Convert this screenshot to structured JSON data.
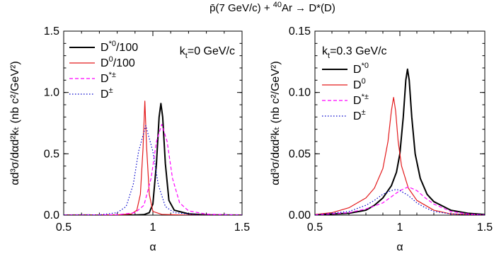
{
  "title": {
    "pre": "p̄(7 GeV/c) + ",
    "sup": "40",
    "post": "Ar → D*(D)"
  },
  "chart_data": [
    {
      "type": "line",
      "panel": "left",
      "annotation": {
        "base": "k",
        "sub": "t",
        "rest": "=0 GeV/c"
      },
      "xlabel": "α",
      "ylabel": "αd³σ/dαd²kₜ (nb c²/GeV²)",
      "xlim": [
        0.5,
        1.5
      ],
      "ylim": [
        0.0,
        1.5
      ],
      "xticks": [
        "0.5",
        "1",
        "1.5"
      ],
      "yticks": [
        "0.0",
        "0.5",
        "1.0",
        "1.5"
      ],
      "legend_position": "top-left",
      "series": [
        {
          "name": {
            "base": "D",
            "sup": "*0",
            "rest": "/100"
          },
          "color": "#000000",
          "dash": "solid",
          "width": 2.0,
          "points": [
            [
              0.5,
              0.0
            ],
            [
              0.9,
              0.001
            ],
            [
              0.95,
              0.004
            ],
            [
              0.98,
              0.02
            ],
            [
              1.0,
              0.09
            ],
            [
              1.02,
              0.42
            ],
            [
              1.035,
              0.8
            ],
            [
              1.045,
              0.91
            ],
            [
              1.055,
              0.8
            ],
            [
              1.07,
              0.42
            ],
            [
              1.09,
              0.12
            ],
            [
              1.12,
              0.04
            ],
            [
              1.2,
              0.01
            ],
            [
              1.3,
              0.002
            ],
            [
              1.5,
              0.0
            ]
          ]
        },
        {
          "name": {
            "base": "D",
            "sup": "0",
            "rest": "/100"
          },
          "color": "#e31a1c",
          "dash": "solid",
          "width": 1.2,
          "points": [
            [
              0.5,
              0.0
            ],
            [
              0.8,
              0.002
            ],
            [
              0.88,
              0.01
            ],
            [
              0.91,
              0.04
            ],
            [
              0.93,
              0.17
            ],
            [
              0.945,
              0.55
            ],
            [
              0.955,
              0.93
            ],
            [
              0.965,
              0.55
            ],
            [
              0.98,
              0.17
            ],
            [
              1.0,
              0.03
            ],
            [
              1.05,
              0.006
            ],
            [
              1.2,
              0.0
            ],
            [
              1.5,
              0.0
            ]
          ]
        },
        {
          "name": {
            "base": "D",
            "sup": "*±",
            "rest": ""
          },
          "color": "#ff00ff",
          "dash": "dash",
          "width": 1.2,
          "points": [
            [
              0.5,
              0.0
            ],
            [
              0.8,
              0.003
            ],
            [
              0.9,
              0.02
            ],
            [
              0.95,
              0.08
            ],
            [
              0.99,
              0.3
            ],
            [
              1.02,
              0.6
            ],
            [
              1.05,
              0.74
            ],
            [
              1.08,
              0.6
            ],
            [
              1.11,
              0.3
            ],
            [
              1.15,
              0.1
            ],
            [
              1.2,
              0.035
            ],
            [
              1.3,
              0.008
            ],
            [
              1.5,
              0.0
            ]
          ]
        },
        {
          "name": {
            "base": "D",
            "sup": "±",
            "rest": ""
          },
          "color": "#0000cc",
          "dash": "dot",
          "width": 1.2,
          "points": [
            [
              0.5,
              0.0
            ],
            [
              0.7,
              0.002
            ],
            [
              0.8,
              0.02
            ],
            [
              0.85,
              0.07
            ],
            [
              0.89,
              0.25
            ],
            [
              0.92,
              0.52
            ],
            [
              0.96,
              0.73
            ],
            [
              1.0,
              0.52
            ],
            [
              1.03,
              0.25
            ],
            [
              1.07,
              0.07
            ],
            [
              1.12,
              0.02
            ],
            [
              1.25,
              0.002
            ],
            [
              1.5,
              0.0
            ]
          ]
        }
      ]
    },
    {
      "type": "line",
      "panel": "right",
      "annotation": {
        "base": "k",
        "sub": "t",
        "rest": "=0.3 GeV/c"
      },
      "xlabel": "α",
      "ylabel": "αd³σ/dαd²kₜ (nb c²/GeV²)",
      "xlim": [
        0.5,
        1.5
      ],
      "ylim": [
        0.0,
        0.15
      ],
      "xticks": [
        "0.5",
        "1",
        "1.5"
      ],
      "yticks": [
        "0.00",
        "0.05",
        "0.10",
        "0.15"
      ],
      "legend_position": "top-left",
      "series": [
        {
          "name": {
            "base": "D",
            "sup": "*0",
            "rest": ""
          },
          "color": "#000000",
          "dash": "solid",
          "width": 2.0,
          "points": [
            [
              0.5,
              0.0002
            ],
            [
              0.7,
              0.0015
            ],
            [
              0.8,
              0.004
            ],
            [
              0.85,
              0.008
            ],
            [
              0.9,
              0.014
            ],
            [
              0.95,
              0.024
            ],
            [
              0.98,
              0.035
            ],
            [
              1.0,
              0.05
            ],
            [
              1.02,
              0.08
            ],
            [
              1.035,
              0.11
            ],
            [
              1.045,
              0.119
            ],
            [
              1.055,
              0.11
            ],
            [
              1.07,
              0.08
            ],
            [
              1.09,
              0.05
            ],
            [
              1.12,
              0.03
            ],
            [
              1.16,
              0.017
            ],
            [
              1.2,
              0.011
            ],
            [
              1.3,
              0.004
            ],
            [
              1.4,
              0.0015
            ],
            [
              1.5,
              0.0005
            ]
          ]
        },
        {
          "name": {
            "base": "D",
            "sup": "0",
            "rest": ""
          },
          "color": "#e31a1c",
          "dash": "solid",
          "width": 1.2,
          "points": [
            [
              0.5,
              0.0005
            ],
            [
              0.6,
              0.002
            ],
            [
              0.7,
              0.006
            ],
            [
              0.8,
              0.014
            ],
            [
              0.85,
              0.022
            ],
            [
              0.9,
              0.038
            ],
            [
              0.93,
              0.06
            ],
            [
              0.95,
              0.085
            ],
            [
              0.963,
              0.096
            ],
            [
              0.975,
              0.085
            ],
            [
              0.99,
              0.06
            ],
            [
              1.01,
              0.04
            ],
            [
              1.05,
              0.022
            ],
            [
              1.1,
              0.012
            ],
            [
              1.2,
              0.004
            ],
            [
              1.3,
              0.001
            ],
            [
              1.5,
              0.0
            ]
          ]
        },
        {
          "name": {
            "base": "D",
            "sup": "*±",
            "rest": ""
          },
          "color": "#ff00ff",
          "dash": "dash",
          "width": 1.2,
          "points": [
            [
              0.5,
              0.0001
            ],
            [
              0.7,
              0.002
            ],
            [
              0.8,
              0.005
            ],
            [
              0.9,
              0.01
            ],
            [
              0.95,
              0.015
            ],
            [
              1.0,
              0.02
            ],
            [
              1.05,
              0.023
            ],
            [
              1.1,
              0.02
            ],
            [
              1.15,
              0.014
            ],
            [
              1.2,
              0.009
            ],
            [
              1.3,
              0.003
            ],
            [
              1.4,
              0.001
            ],
            [
              1.5,
              0.0
            ]
          ]
        },
        {
          "name": {
            "base": "D",
            "sup": "±",
            "rest": ""
          },
          "color": "#0000cc",
          "dash": "dot",
          "width": 1.2,
          "points": [
            [
              0.5,
              0.0002
            ],
            [
              0.7,
              0.003
            ],
            [
              0.8,
              0.008
            ],
            [
              0.85,
              0.012
            ],
            [
              0.9,
              0.017
            ],
            [
              0.95,
              0.02
            ],
            [
              0.98,
              0.021
            ],
            [
              1.0,
              0.02
            ],
            [
              1.05,
              0.016
            ],
            [
              1.1,
              0.01
            ],
            [
              1.15,
              0.006
            ],
            [
              1.2,
              0.003
            ],
            [
              1.3,
              0.001
            ],
            [
              1.5,
              0.0
            ]
          ]
        }
      ]
    }
  ]
}
